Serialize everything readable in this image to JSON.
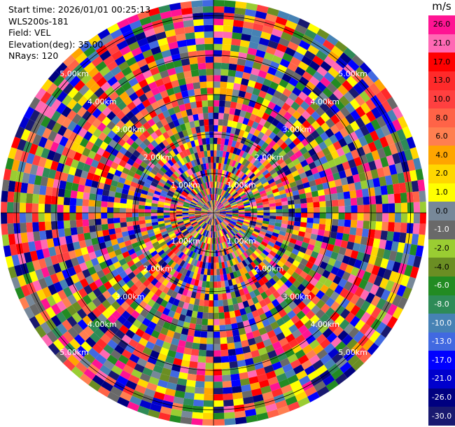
{
  "info": {
    "start_time": "Start time: 2026/01/01 00:25:13",
    "instrument": "WLS200s-181",
    "field": "Field: VEL",
    "elevation": "Elevation(deg): 35.00",
    "nrays": "NRays: 120"
  },
  "chart_data": {
    "type": "heatmap",
    "projection": "polar-ppi",
    "unit": "m/s",
    "range_ring_labels": [
      "1.00km",
      "2.00km",
      "3.00km",
      "4.00km",
      "5.00km"
    ],
    "range_rings_km": [
      1,
      2,
      3,
      4,
      5
    ],
    "max_range_km": 5.4,
    "n_rays": 120,
    "colorbar": {
      "ticks": [
        "26.0",
        "21.0",
        "17.0",
        "13.0",
        "10.0",
        "8.0",
        "6.0",
        "4.0",
        "2.0",
        "1.0",
        "0.0",
        "-1.0",
        "-2.0",
        "-4.0",
        "-6.0",
        "-8.0",
        "-10.0",
        "-13.0",
        "-17.0",
        "-21.0",
        "-26.0",
        "-30.0"
      ],
      "colors": [
        "#ff1493",
        "#ff69b4",
        "#ff0000",
        "#ff2a2a",
        "#ff4040",
        "#ff6347",
        "#ff7f50",
        "#ffa500",
        "#ffd700",
        "#ffff00",
        "#778899",
        "#696969",
        "#9acd32",
        "#6b8e23",
        "#228b22",
        "#2e8b57",
        "#4682b4",
        "#4169e1",
        "#0000ff",
        "#0000cd",
        "#000080",
        "#191970"
      ]
    }
  }
}
